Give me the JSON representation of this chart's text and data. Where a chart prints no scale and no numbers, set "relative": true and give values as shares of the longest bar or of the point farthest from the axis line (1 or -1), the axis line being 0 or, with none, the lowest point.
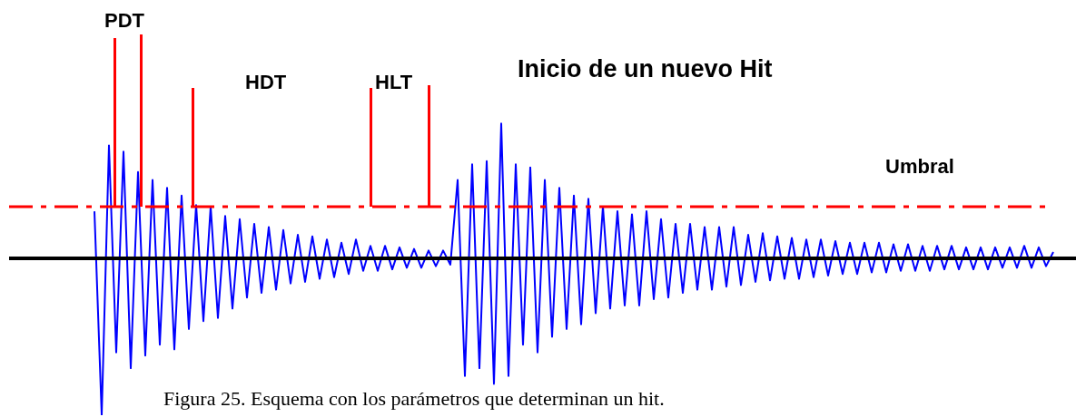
{
  "chart_data": {
    "type": "line",
    "relative": true,
    "categories": [
      null,
      null,
      null,
      null,
      null,
      null,
      null,
      null,
      null,
      null,
      null,
      null,
      null,
      null,
      null,
      null,
      null,
      null,
      null,
      null,
      null,
      null,
      null,
      null,
      null,
      null,
      null,
      null,
      null,
      null,
      null,
      null,
      null,
      null,
      null,
      null,
      null,
      null,
      null,
      null,
      null,
      null,
      null,
      null,
      null,
      null,
      null,
      null,
      null,
      null,
      null,
      null,
      null,
      null,
      null,
      null,
      null,
      null,
      null,
      null,
      null,
      null,
      null,
      null,
      null,
      null,
      null,
      null,
      null,
      null,
      null,
      null,
      null,
      null,
      null,
      null,
      null,
      null,
      null,
      null,
      null,
      null,
      null,
      null,
      null,
      null,
      null,
      null,
      null,
      null,
      null,
      null,
      null,
      null,
      null,
      null,
      null,
      null,
      null,
      null,
      null,
      null,
      null,
      null,
      null,
      null,
      null,
      null,
      null,
      null,
      null,
      null,
      null,
      null,
      null,
      null,
      null,
      null,
      null,
      null,
      null,
      null,
      null,
      null,
      null,
      null,
      null,
      null,
      null,
      null,
      null,
      null,
      null
    ],
    "series": [
      {
        "color": "#0000ff",
        "values": [
          0.3,
          -1,
          0.72,
          -0.6,
          0.68,
          -0.7,
          0.55,
          -0.62,
          0.5,
          -0.55,
          0.45,
          -0.58,
          0.4,
          -0.45,
          0.34,
          -0.4,
          0.33,
          -0.38,
          0.27,
          -0.32,
          0.25,
          -0.25,
          0.22,
          -0.22,
          0.2,
          -0.2,
          0.18,
          -0.16,
          0.15,
          -0.15,
          0.14,
          -0.13,
          0.12,
          -0.12,
          0.1,
          -0.1,
          0.12,
          -0.08,
          0.08,
          -0.08,
          0.08,
          -0.07,
          0.07,
          -0.06,
          0.06,
          -0.06,
          0.05,
          -0.05,
          0.05,
          -0.04,
          0.5,
          -0.75,
          0.6,
          -0.7,
          0.62,
          -0.8,
          0.86,
          -0.75,
          0.6,
          -0.55,
          0.58,
          -0.6,
          0.5,
          -0.5,
          0.45,
          -0.45,
          0.4,
          -0.42,
          0.38,
          -0.35,
          0.33,
          -0.32,
          0.3,
          -0.3,
          0.28,
          -0.3,
          0.3,
          -0.26,
          0.25,
          -0.25,
          0.22,
          -0.22,
          0.22,
          -0.2,
          0.2,
          -0.2,
          0.2,
          -0.18,
          0.2,
          -0.17,
          0.15,
          -0.15,
          0.16,
          -0.14,
          0.14,
          -0.13,
          0.13,
          -0.13,
          0.12,
          -0.12,
          0.12,
          -0.11,
          0.11,
          -0.1,
          0.1,
          -0.1,
          0.1,
          -0.09,
          0.1,
          -0.09,
          0.09,
          -0.08,
          0.09,
          -0.08,
          0.08,
          -0.08,
          0.08,
          -0.07,
          0.08,
          -0.07,
          0.07,
          -0.07,
          0.07,
          -0.07,
          0.07,
          -0.06,
          0.07,
          -0.06,
          0.08,
          -0.06,
          0.07,
          -0.05,
          0.04
        ]
      }
    ],
    "ref_lines": [
      {
        "axis": "y",
        "value": 0,
        "color": "#000000",
        "line_style": "solid"
      },
      {
        "axis": "y",
        "value": 0.33,
        "label": "Umbral",
        "color": "#ff0000",
        "line_style": "dashed"
      }
    ],
    "annotations": [
      "PDT",
      "HDT",
      "HLT",
      "Inicio de un nuevo Hit",
      "Figura 25. Esquema con los parámetros que determinan un hit."
    ]
  }
}
